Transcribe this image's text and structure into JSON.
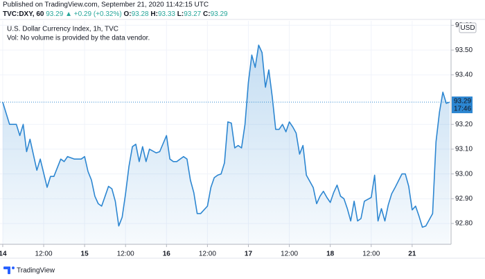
{
  "header": {
    "published": "Published on TradingView.com, September 21, 2020 11:42:15 UTC",
    "symbol": "TVC:DXY, 60",
    "price": "93.29",
    "arrow": "▲",
    "change": "+0.29 (+0.32%)",
    "o_label": "O:",
    "o": "93.28",
    "h_label": "H:",
    "h": "93.33",
    "l_label": "L:",
    "l": "93.27",
    "c_label": "C:",
    "c": "93.29"
  },
  "chart_data": {
    "type": "area",
    "title": "U.S. Dollar Currency Index, 1h, TVC",
    "subtitle": "Vol: No volume is provided by the data vendor.",
    "currency": "USD",
    "color": "#2c86d1",
    "x": [
      0,
      2,
      3,
      4,
      5,
      6,
      7,
      8,
      10,
      11,
      13,
      14,
      15,
      17,
      18,
      19,
      21,
      23,
      24,
      25,
      26,
      27,
      28,
      29,
      30,
      31,
      32,
      33,
      34,
      35,
      36,
      37,
      38,
      39,
      40,
      41,
      42,
      43,
      45,
      46,
      48,
      49,
      50,
      51,
      53,
      54,
      55,
      56,
      57,
      58,
      60,
      61,
      62,
      63,
      64,
      65,
      66,
      67,
      68,
      69,
      70,
      71,
      72,
      73,
      74,
      75,
      76,
      77,
      78,
      79,
      80,
      81,
      82,
      83,
      84,
      85,
      86,
      87,
      88,
      89,
      91,
      92,
      93,
      94,
      95,
      96,
      97,
      98,
      99,
      100,
      101,
      102,
      103,
      104,
      105,
      106,
      108,
      109,
      110,
      111,
      112,
      113,
      114,
      115,
      117,
      118,
      119,
      120,
      121,
      122,
      123,
      124,
      126,
      127,
      128,
      129,
      130,
      131
    ],
    "values": [
      93.29,
      93.2,
      93.2,
      93.2,
      93.155,
      93.2,
      93.09,
      93.14,
      93.015,
      93.06,
      92.946,
      92.99,
      92.99,
      93.06,
      93.05,
      93.07,
      93.06,
      93.06,
      93.07,
      93.01,
      92.975,
      92.91,
      92.88,
      92.87,
      92.91,
      92.95,
      92.94,
      92.89,
      92.79,
      92.825,
      92.92,
      93.03,
      93.11,
      93.12,
      93.05,
      93.11,
      93.05,
      93.1,
      93.085,
      93.09,
      93.155,
      93.06,
      93.05,
      93.05,
      93.07,
      93.06,
      92.975,
      92.925,
      92.84,
      92.84,
      92.87,
      92.945,
      92.985,
      92.995,
      93.0,
      93.045,
      93.21,
      93.205,
      93.105,
      93.115,
      93.105,
      93.2,
      93.37,
      93.48,
      93.43,
      93.52,
      93.49,
      93.35,
      93.42,
      93.31,
      93.18,
      93.18,
      93.2,
      93.17,
      93.21,
      93.19,
      93.165,
      93.08,
      93.115,
      92.995,
      92.945,
      92.88,
      92.91,
      92.93,
      92.905,
      92.885,
      92.925,
      92.955,
      92.91,
      92.9,
      92.86,
      92.81,
      92.89,
      92.81,
      92.82,
      92.89,
      92.905,
      92.995,
      92.81,
      92.86,
      92.81,
      92.875,
      92.92,
      92.945,
      93.0,
      93.0,
      92.95,
      92.855,
      92.87,
      92.83,
      92.785,
      92.79,
      92.84,
      93.13,
      93.25,
      93.33,
      93.285,
      93.29
    ],
    "xlim": [
      -0.8,
      131.4
    ],
    "xticks": [
      {
        "value": 0,
        "label": "14"
      },
      {
        "value": 12,
        "label": "12:00"
      },
      {
        "value": 24,
        "label": "15"
      },
      {
        "value": 36,
        "label": "12:00"
      },
      {
        "value": 48,
        "label": "16"
      },
      {
        "value": 60,
        "label": "12:00"
      },
      {
        "value": 72,
        "label": "17"
      },
      {
        "value": 84,
        "label": "12:00"
      },
      {
        "value": 96,
        "label": "18"
      },
      {
        "value": 108,
        "label": "12:00"
      },
      {
        "value": 120,
        "label": "21"
      }
    ],
    "ylim": [
      92.716,
      93.618
    ],
    "yticks": [
      {
        "value": 92.8,
        "label": "92.80"
      },
      {
        "value": 92.9,
        "label": "92.90"
      },
      {
        "value": 93.0,
        "label": "93.00"
      },
      {
        "value": 93.1,
        "label": "93.10"
      },
      {
        "value": 93.2,
        "label": "93.20"
      },
      {
        "value": 93.4,
        "label": "93.40"
      },
      {
        "value": 93.5,
        "label": "93.50"
      },
      {
        "value": 93.6,
        "label": "93.60"
      }
    ],
    "last_price": {
      "value": 93.29,
      "label": "93.29"
    },
    "countdown": "17:46",
    "grid": true,
    "brand": "TradingView"
  }
}
